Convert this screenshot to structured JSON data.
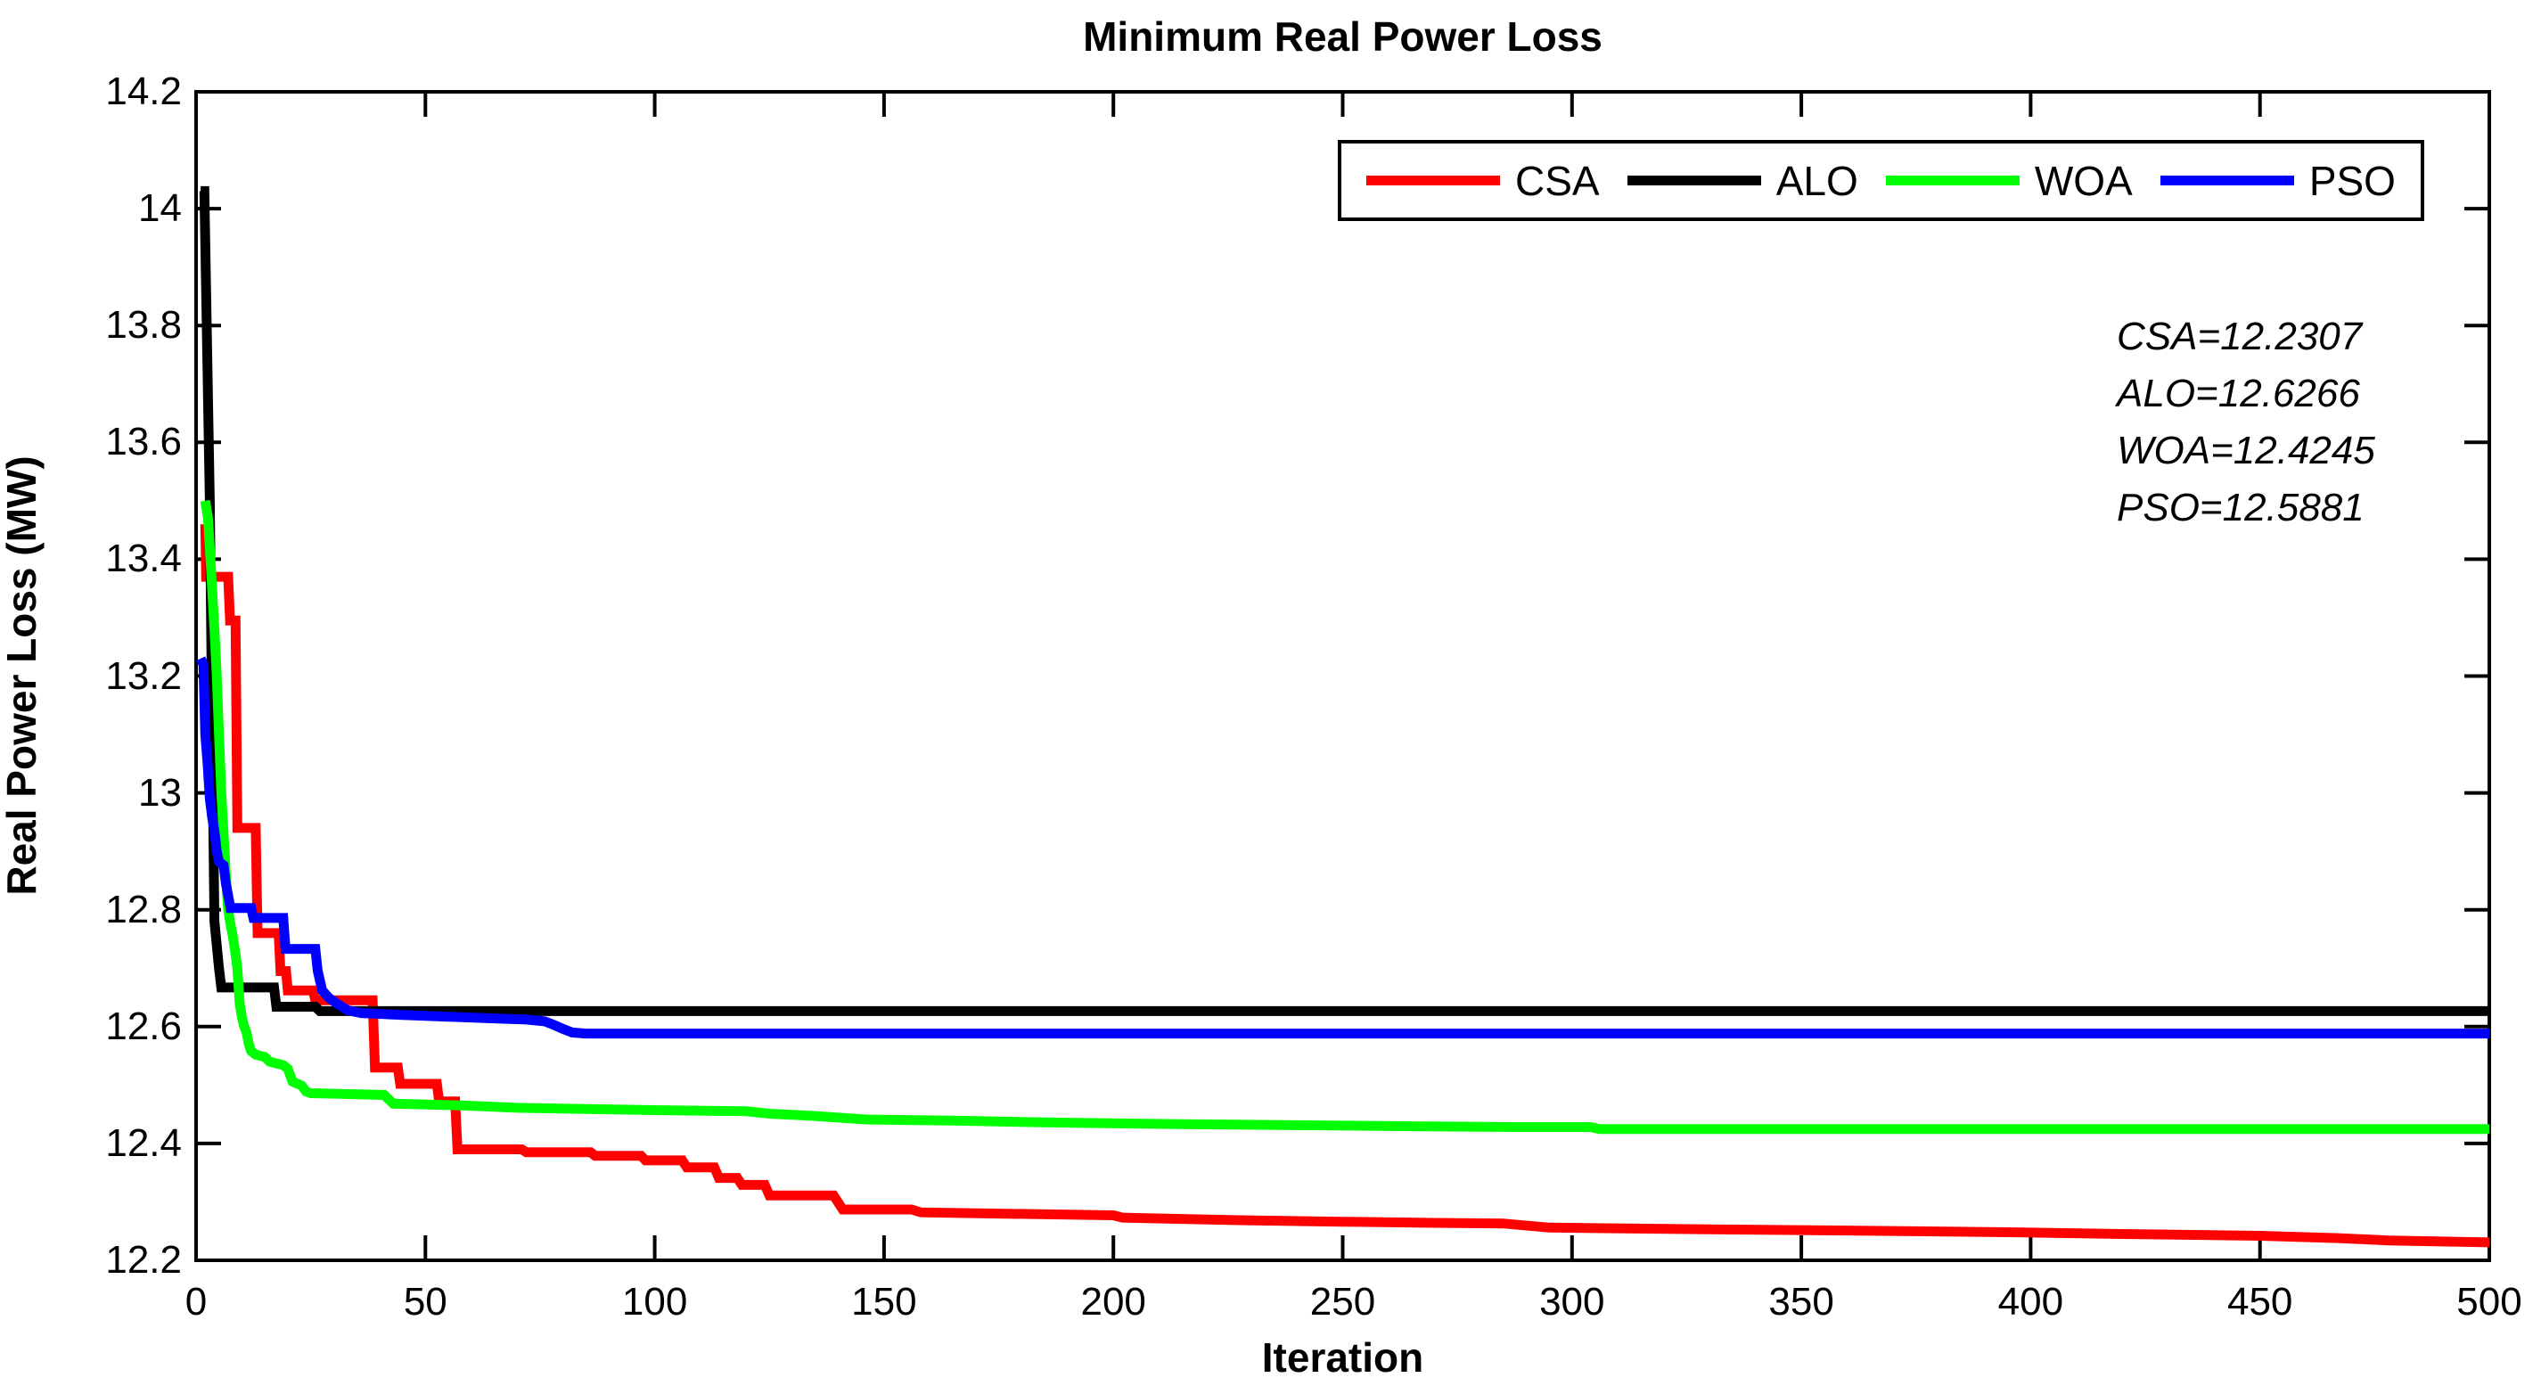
{
  "chart_data": {
    "type": "line",
    "title": "Minimum Real Power Loss",
    "xlabel": "Iteration",
    "ylabel": "Real Power Loss (MW)",
    "xlim": [
      0,
      500
    ],
    "ylim": [
      12.2,
      14.2
    ],
    "grid": false,
    "background_color": "#ffffff",
    "axis_color": "#000000",
    "line_width": 11,
    "legend_position": "top-inside-horizontal",
    "xticks": [
      {
        "value": 0,
        "label": "0"
      },
      {
        "value": 50,
        "label": "50"
      },
      {
        "value": 100,
        "label": "100"
      },
      {
        "value": 150,
        "label": "150"
      },
      {
        "value": 200,
        "label": "200"
      },
      {
        "value": 250,
        "label": "250"
      },
      {
        "value": 300,
        "label": "300"
      },
      {
        "value": 350,
        "label": "350"
      },
      {
        "value": 400,
        "label": "400"
      },
      {
        "value": 450,
        "label": "450"
      },
      {
        "value": 500,
        "label": "500"
      }
    ],
    "yticks": [
      {
        "value": 12.2,
        "label": "12.2"
      },
      {
        "value": 12.4,
        "label": "12.4"
      },
      {
        "value": 12.6,
        "label": "12.6"
      },
      {
        "value": 12.8,
        "label": "12.8"
      },
      {
        "value": 13,
        "label": "13"
      },
      {
        "value": 13.2,
        "label": "13.2"
      },
      {
        "value": 13.4,
        "label": "13.4"
      },
      {
        "value": 13.6,
        "label": "13.6"
      },
      {
        "value": 13.8,
        "label": "13.8"
      },
      {
        "value": 14,
        "label": "14"
      },
      {
        "value": 14.2,
        "label": "14.2"
      }
    ],
    "legend": [
      {
        "label": "CSA",
        "color": "#ff0000"
      },
      {
        "label": "ALO",
        "color": "#000000"
      },
      {
        "label": "WOA",
        "color": "#00ff00"
      },
      {
        "label": "PSO",
        "color": "#0000ff"
      }
    ],
    "annotations": [
      "CSA=12.2307",
      "ALO=12.6266",
      "WOA=12.4245",
      "PSO=12.5881"
    ],
    "series": [
      {
        "name": "CSA",
        "color": "#ff0000",
        "final_value": 12.2307,
        "points": [
          [
            2,
            13.46
          ],
          [
            2.2,
            13.37
          ],
          [
            7,
            13.37
          ],
          [
            7.4,
            13.295
          ],
          [
            8.6,
            13.295
          ],
          [
            9,
            12.94
          ],
          [
            13,
            12.94
          ],
          [
            13.4,
            12.76
          ],
          [
            18,
            12.76
          ],
          [
            18.4,
            12.695
          ],
          [
            19.6,
            12.695
          ],
          [
            20,
            12.662
          ],
          [
            25.5,
            12.662
          ],
          [
            26,
            12.645
          ],
          [
            38.5,
            12.645
          ],
          [
            39,
            12.53
          ],
          [
            44,
            12.53
          ],
          [
            44.5,
            12.502
          ],
          [
            52.5,
            12.502
          ],
          [
            53,
            12.472
          ],
          [
            56.5,
            12.472
          ],
          [
            57,
            12.39
          ],
          [
            71,
            12.39
          ],
          [
            72,
            12.385
          ],
          [
            86,
            12.385
          ],
          [
            87,
            12.379
          ],
          [
            97,
            12.379
          ],
          [
            98,
            12.371
          ],
          [
            106,
            12.371
          ],
          [
            107,
            12.359
          ],
          [
            113,
            12.359
          ],
          [
            114,
            12.341
          ],
          [
            118,
            12.341
          ],
          [
            119,
            12.329
          ],
          [
            124,
            12.329
          ],
          [
            125,
            12.311
          ],
          [
            139,
            12.311
          ],
          [
            141,
            12.287
          ],
          [
            156,
            12.287
          ],
          [
            158,
            12.282
          ],
          [
            175,
            12.28
          ],
          [
            200,
            12.277
          ],
          [
            202,
            12.273
          ],
          [
            225,
            12.269
          ],
          [
            250,
            12.266
          ],
          [
            270,
            12.264
          ],
          [
            285,
            12.263
          ],
          [
            295,
            12.256
          ],
          [
            330,
            12.253
          ],
          [
            360,
            12.251
          ],
          [
            395,
            12.248
          ],
          [
            420,
            12.245
          ],
          [
            450,
            12.242
          ],
          [
            467,
            12.238
          ],
          [
            478,
            12.234
          ],
          [
            500,
            12.2307
          ]
        ]
      },
      {
        "name": "ALO",
        "color": "#000000",
        "final_value": 12.6266,
        "points": [
          [
            1,
            14.03
          ],
          [
            1.8,
            14.03
          ],
          [
            3,
            13.5
          ],
          [
            3.6,
            13.05
          ],
          [
            4,
            12.78
          ],
          [
            5,
            12.7
          ],
          [
            5.5,
            12.667
          ],
          [
            17,
            12.667
          ],
          [
            17.5,
            12.634
          ],
          [
            26,
            12.634
          ],
          [
            27,
            12.6266
          ],
          [
            500,
            12.6266
          ]
        ]
      },
      {
        "name": "WOA",
        "color": "#00ff00",
        "final_value": 12.4245,
        "points": [
          [
            2,
            13.5
          ],
          [
            2.6,
            13.47
          ],
          [
            3,
            13.42
          ],
          [
            3.5,
            13.35
          ],
          [
            4,
            13.28
          ],
          [
            4.5,
            13.2
          ],
          [
            5,
            13.1
          ],
          [
            5.5,
            13.0
          ],
          [
            6,
            12.93
          ],
          [
            6.5,
            12.86
          ],
          [
            7,
            12.8
          ],
          [
            7.5,
            12.775
          ],
          [
            8,
            12.755
          ],
          [
            8.5,
            12.73
          ],
          [
            9,
            12.7
          ],
          [
            9.5,
            12.64
          ],
          [
            10,
            12.615
          ],
          [
            10.5,
            12.6
          ],
          [
            11,
            12.59
          ],
          [
            11.5,
            12.57
          ],
          [
            12,
            12.558
          ],
          [
            13,
            12.552
          ],
          [
            15,
            12.548
          ],
          [
            16,
            12.54
          ],
          [
            19,
            12.534
          ],
          [
            20,
            12.528
          ],
          [
            21,
            12.506
          ],
          [
            23,
            12.499
          ],
          [
            24,
            12.489
          ],
          [
            25,
            12.486
          ],
          [
            41,
            12.483
          ],
          [
            43,
            12.468
          ],
          [
            58,
            12.465
          ],
          [
            70,
            12.461
          ],
          [
            85,
            12.459
          ],
          [
            100,
            12.457
          ],
          [
            120,
            12.455
          ],
          [
            125,
            12.451
          ],
          [
            135,
            12.447
          ],
          [
            146,
            12.441
          ],
          [
            165,
            12.439
          ],
          [
            185,
            12.436
          ],
          [
            215,
            12.433
          ],
          [
            245,
            12.431
          ],
          [
            265,
            12.4295
          ],
          [
            288,
            12.428
          ],
          [
            304,
            12.428
          ],
          [
            306,
            12.4245
          ],
          [
            500,
            12.4245
          ]
        ]
      },
      {
        "name": "PSO",
        "color": "#0000ff",
        "final_value": 12.5881,
        "points": [
          [
            1,
            13.23
          ],
          [
            1.6,
            13.22
          ],
          [
            2,
            13.1
          ],
          [
            2.5,
            13.05
          ],
          [
            3,
            12.99
          ],
          [
            3.5,
            12.958
          ],
          [
            4,
            12.935
          ],
          [
            4.5,
            12.9
          ],
          [
            5,
            12.882
          ],
          [
            6,
            12.876
          ],
          [
            6.5,
            12.845
          ],
          [
            7.5,
            12.803
          ],
          [
            12,
            12.803
          ],
          [
            12.5,
            12.786
          ],
          [
            19,
            12.786
          ],
          [
            19.5,
            12.733
          ],
          [
            26,
            12.733
          ],
          [
            26.5,
            12.696
          ],
          [
            27.5,
            12.662
          ],
          [
            29,
            12.649
          ],
          [
            31,
            12.638
          ],
          [
            33,
            12.628
          ],
          [
            36,
            12.623
          ],
          [
            45,
            12.62
          ],
          [
            55,
            12.617
          ],
          [
            65,
            12.614
          ],
          [
            72,
            12.612
          ],
          [
            76,
            12.609
          ],
          [
            78,
            12.603
          ],
          [
            80,
            12.596
          ],
          [
            82,
            12.59
          ],
          [
            85,
            12.5881
          ],
          [
            500,
            12.5881
          ]
        ]
      }
    ]
  }
}
